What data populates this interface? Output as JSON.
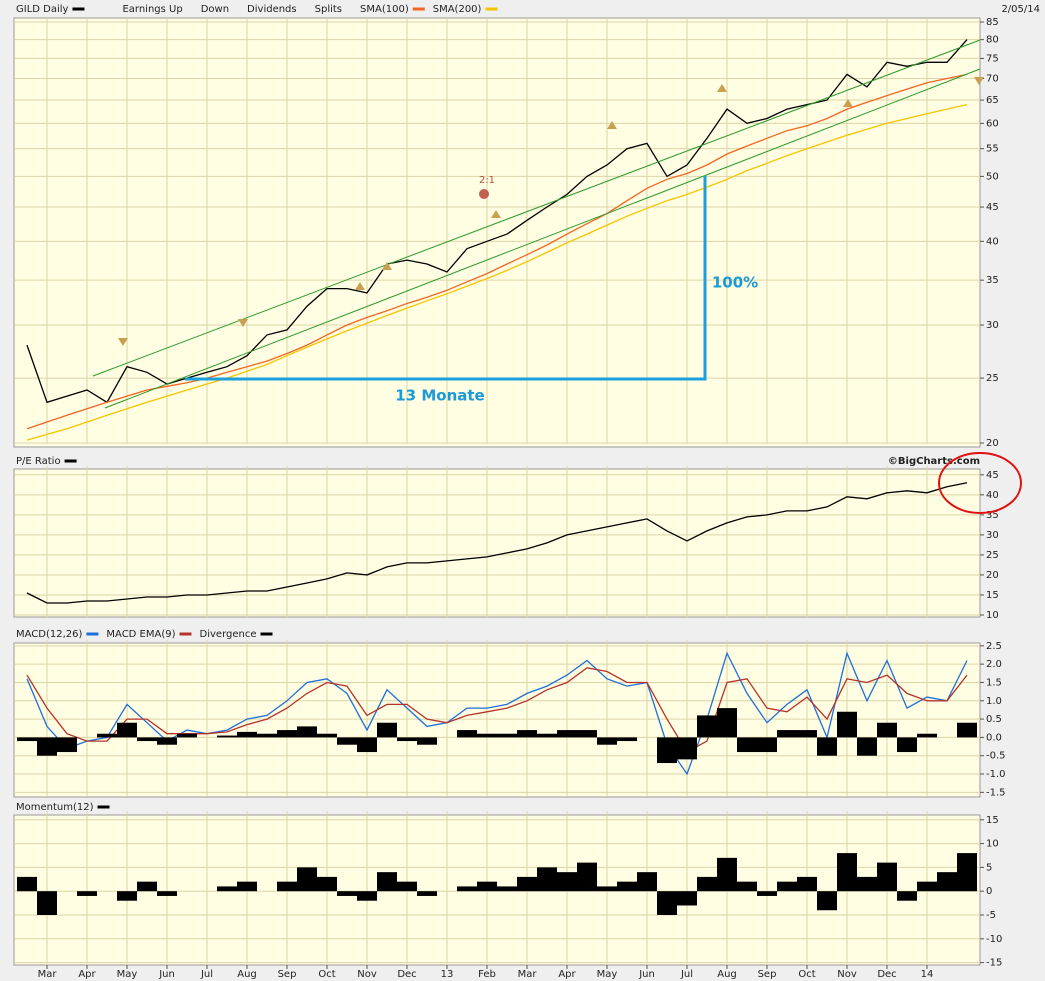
{
  "chart_data": [
    {
      "type": "line",
      "title": "GILD Daily",
      "date": "2/05/14",
      "log_scale": true,
      "grid": true,
      "ylim": [
        20,
        85
      ],
      "yticks": [
        20,
        25,
        30,
        35,
        40,
        45,
        50,
        55,
        60,
        65,
        70,
        75,
        80,
        85
      ],
      "event_legend": [
        "Earnings Up",
        "Down",
        "Dividends",
        "Splits"
      ],
      "annotations": [
        "100%",
        "13 Monate",
        "2:1"
      ],
      "series": [
        {
          "name": "GILD Daily",
          "color": "#000000",
          "values": [
            28,
            23,
            23.5,
            24,
            23,
            26,
            25.5,
            24.5,
            25,
            25.5,
            26,
            27,
            29,
            29.5,
            32,
            34,
            34,
            33.5,
            37,
            37.5,
            37,
            36,
            39,
            40,
            41,
            43,
            45,
            47,
            50,
            52,
            55,
            56,
            50,
            52,
            57,
            63,
            60,
            61,
            63,
            64,
            65,
            71,
            68,
            74,
            73,
            74,
            74,
            80
          ]
        },
        {
          "name": "SMA(100)",
          "color": "#f26522",
          "values": [
            21,
            21.5,
            22,
            22.5,
            23,
            23.5,
            24,
            24.3,
            24.6,
            25,
            25.5,
            26,
            26.5,
            27.2,
            28,
            29,
            30,
            30.8,
            31.5,
            32.3,
            33,
            33.8,
            34.8,
            35.8,
            37,
            38.2,
            39.5,
            41,
            42.5,
            44,
            46,
            48,
            49.5,
            50.5,
            52,
            54,
            55.5,
            57,
            58.5,
            59.5,
            61,
            63,
            64.5,
            66,
            67.5,
            69,
            70,
            71
          ]
        },
        {
          "name": "SMA(200)",
          "color": "#f5c400",
          "values": [
            20.2,
            20.6,
            21,
            21.5,
            22,
            22.5,
            23,
            23.5,
            24,
            24.5,
            25,
            25.6,
            26.2,
            27,
            27.8,
            28.6,
            29.4,
            30.2,
            31,
            31.8,
            32.6,
            33.4,
            34.3,
            35.2,
            36.2,
            37.3,
            38.5,
            39.8,
            41,
            42.3,
            43.6,
            44.8,
            46,
            47,
            48.2,
            49.5,
            51,
            52.3,
            53.7,
            55,
            56.3,
            57.6,
            58.8,
            60,
            61,
            62,
            63,
            64
          ]
        }
      ]
    },
    {
      "type": "line",
      "grid": true,
      "source": "©BigCharts.com",
      "ylim": [
        9.5,
        46.2
      ],
      "yticks": [
        10,
        15,
        20,
        25,
        30,
        35,
        40,
        45
      ],
      "series": [
        {
          "name": "P/E Ratio",
          "color": "#000000",
          "values": [
            15.5,
            13,
            13,
            13.5,
            13.5,
            14,
            14.5,
            14.5,
            15,
            15,
            15.5,
            16,
            16,
            17,
            18,
            19,
            20.5,
            20,
            22,
            23,
            23,
            23.5,
            24,
            24.5,
            25.5,
            26.5,
            28,
            30,
            31,
            32,
            33,
            34,
            31,
            28.5,
            31,
            33,
            34.5,
            35,
            36,
            36,
            37,
            39.5,
            39,
            40.5,
            41,
            40.5,
            42,
            43
          ]
        }
      ]
    },
    {
      "type": "line",
      "grid": true,
      "ylim": [
        -1.6,
        2.55
      ],
      "yticks": [
        2.5,
        {
          "value": 2,
          "label": "2.0"
        },
        1.5,
        {
          "value": 1,
          "label": "1.0"
        },
        0.5,
        {
          "value": 0,
          "label": "0.0"
        },
        -0.5,
        {
          "value": -1,
          "label": "-1.0"
        },
        -1.5
      ],
      "series": [
        {
          "name": "MACD(12,26)",
          "color": "#1e6fd9",
          "values": [
            1.6,
            0.3,
            -0.3,
            -0.1,
            0.0,
            0.9,
            0.4,
            -0.1,
            0.2,
            0.1,
            0.2,
            0.5,
            0.6,
            1.0,
            1.5,
            1.6,
            1.2,
            0.2,
            1.3,
            0.8,
            0.3,
            0.4,
            0.8,
            0.8,
            0.9,
            1.2,
            1.4,
            1.7,
            2.1,
            1.6,
            1.4,
            1.5,
            -0.2,
            -1.0,
            0.5,
            2.3,
            1.2,
            0.4,
            0.9,
            1.3,
            0.0,
            2.3,
            1.0,
            2.1,
            0.8,
            1.1,
            1.0,
            2.1
          ]
        },
        {
          "name": "MACD EMA(9)",
          "color": "#b5332b",
          "values": [
            1.7,
            0.8,
            0.1,
            -0.1,
            -0.1,
            0.5,
            0.5,
            0.1,
            0.1,
            0.1,
            0.15,
            0.35,
            0.5,
            0.8,
            1.2,
            1.5,
            1.4,
            0.6,
            0.9,
            0.9,
            0.5,
            0.4,
            0.6,
            0.7,
            0.8,
            1.0,
            1.3,
            1.5,
            1.9,
            1.8,
            1.5,
            1.5,
            0.5,
            -0.4,
            -0.1,
            1.5,
            1.6,
            0.8,
            0.7,
            1.1,
            0.5,
            1.6,
            1.5,
            1.7,
            1.2,
            1.0,
            1.0,
            1.7
          ]
        },
        {
          "name": "Divergence",
          "color": "#000000",
          "style": "bar",
          "values": [
            -0.1,
            -0.5,
            -0.4,
            0,
            0.1,
            0.4,
            -0.1,
            -0.2,
            0.1,
            0,
            0.05,
            0.15,
            0.1,
            0.2,
            0.3,
            0.1,
            -0.2,
            -0.4,
            0.4,
            -0.1,
            -0.2,
            0,
            0.2,
            0.1,
            0.1,
            0.2,
            0.1,
            0.2,
            0.2,
            -0.2,
            -0.1,
            0,
            -0.7,
            -0.6,
            0.6,
            0.8,
            -0.4,
            -0.4,
            0.2,
            0.2,
            -0.5,
            0.7,
            -0.5,
            0.4,
            -0.4,
            0.1,
            0,
            0.4
          ]
        }
      ]
    },
    {
      "type": "bar",
      "grid": true,
      "ylim": [
        -15.5,
        16
      ],
      "yticks": [
        15,
        10,
        5,
        0,
        -5,
        -10,
        -15
      ],
      "categories": [
        null,
        "Mar",
        null,
        "Apr",
        null,
        "May",
        null,
        "Jun",
        null,
        "Jul",
        null,
        "Aug",
        null,
        "Sep",
        null,
        "Oct",
        null,
        "Nov",
        null,
        "Dec",
        null,
        "13",
        null,
        "Feb",
        null,
        "Mar",
        null,
        "Apr",
        null,
        "May",
        null,
        "Jun",
        null,
        "Jul",
        null,
        "Aug",
        null,
        "Sep",
        null,
        "Oct",
        null,
        "Nov",
        null,
        "Dec",
        null,
        "14",
        null,
        null
      ],
      "series": [
        {
          "name": "Momentum(12)",
          "color": "#000000",
          "values": [
            3,
            -5,
            0,
            -1,
            0,
            -2,
            2,
            -1,
            0,
            0,
            1,
            2,
            0,
            2,
            5,
            3,
            -1,
            -2,
            4,
            2,
            -1,
            0,
            1,
            2,
            1,
            3,
            5,
            4,
            6,
            1,
            2,
            4,
            -5,
            -3,
            3,
            7,
            2,
            -1,
            2,
            3,
            -4,
            8,
            3,
            6,
            -2,
            2,
            4,
            8
          ]
        }
      ]
    }
  ]
}
